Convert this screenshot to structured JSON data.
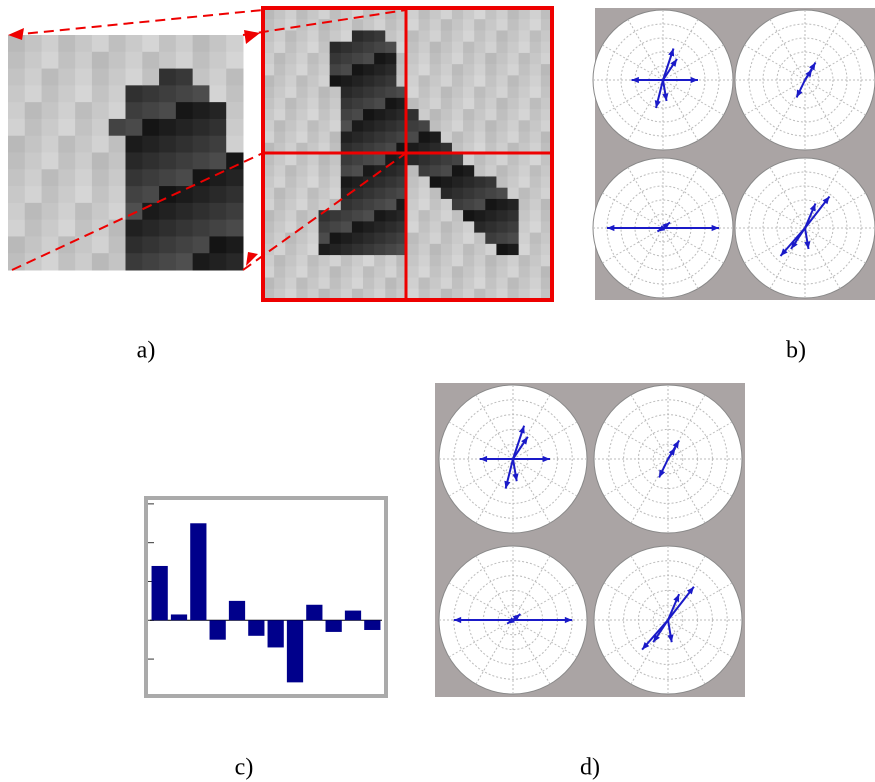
{
  "panels": {
    "a": "a)",
    "b": "b)",
    "c": "c)",
    "d": "d)"
  },
  "chart_data": {
    "type": "bar",
    "color": "#00008b",
    "values": [
      1.4,
      0.15,
      2.5,
      -0.5,
      0.5,
      -0.4,
      -0.7,
      -1.6,
      0.4,
      -0.3,
      0.25,
      -0.25
    ],
    "ylim": [
      -1.9,
      3.1
    ],
    "yticks": [
      -1,
      0,
      1,
      2,
      3
    ]
  }
}
